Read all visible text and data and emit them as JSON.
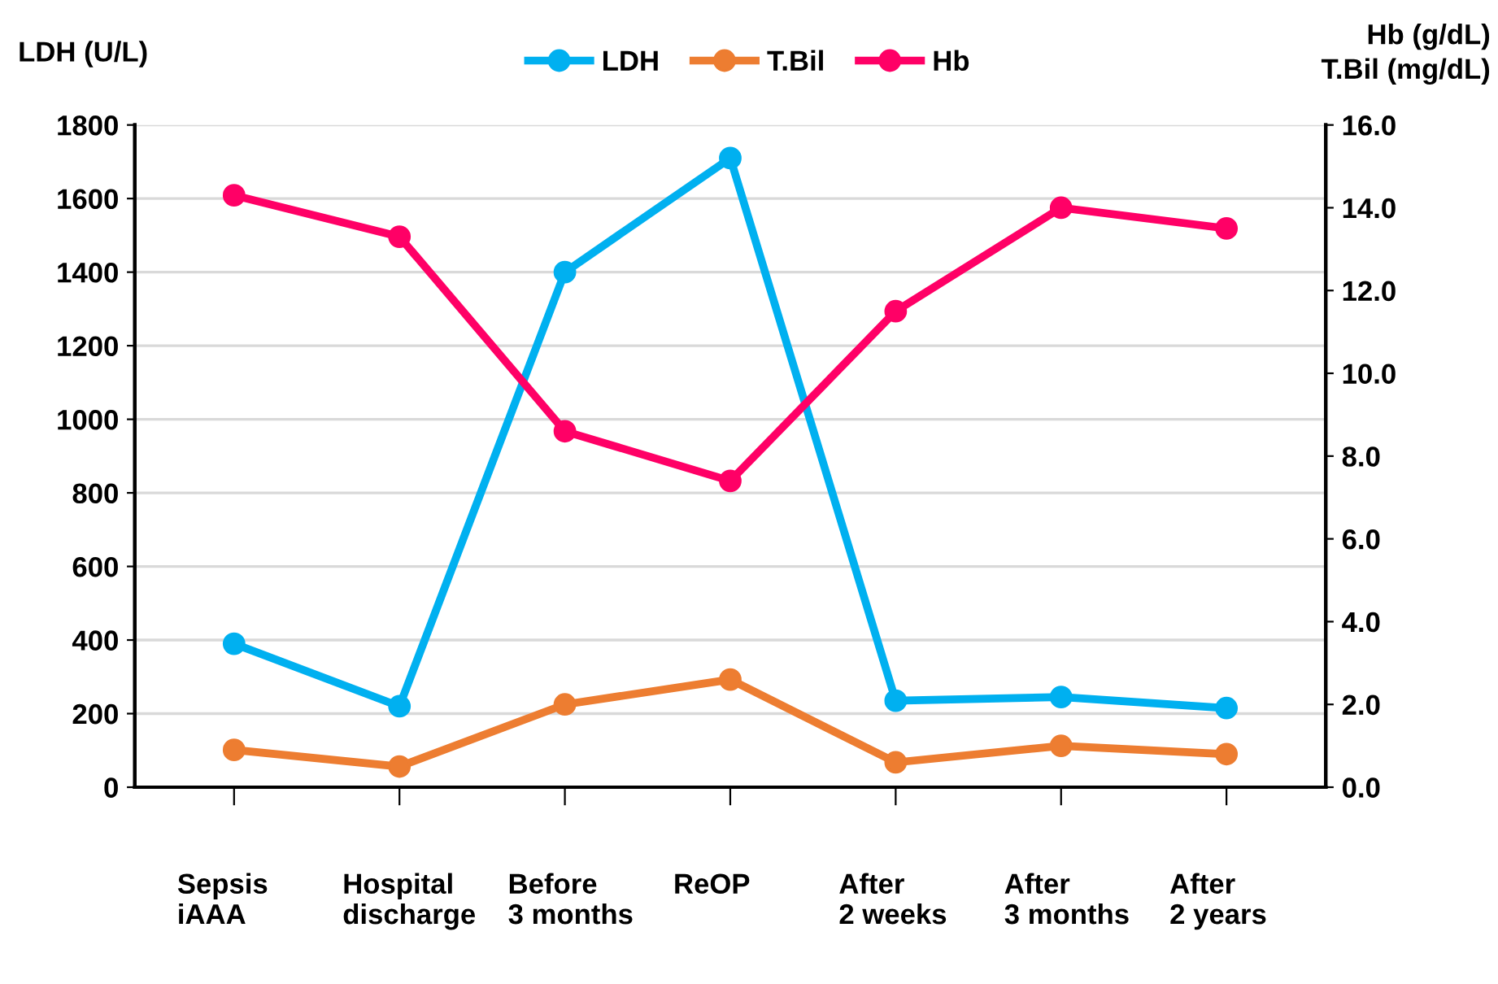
{
  "chart_data": {
    "type": "line",
    "categories": [
      "Sepsis\niAAA",
      "Hospital\ndischarge",
      "Before\n3 months",
      "ReOP",
      "After\n2 weeks",
      "After\n3 months",
      "After\n2 years"
    ],
    "ylabel": "LDH (U/L)",
    "y2label": "Hb (g/dL)\nT.Bil (mg/dL)",
    "series": [
      {
        "name": "LDH",
        "color": "#00b0f0",
        "values": [
          390,
          220,
          1400,
          1710,
          235,
          245,
          215
        ]
      },
      {
        "name": "T.Bil",
        "color": "#ed7d31",
        "axis": "y2",
        "values": [
          0.9,
          0.5,
          2.0,
          2.6,
          0.6,
          1.0,
          0.8
        ]
      },
      {
        "name": "Hb",
        "color": "#ff0066",
        "axis": "y2",
        "values": [
          14.3,
          13.3,
          8.6,
          7.4,
          11.5,
          14.0,
          13.5
        ]
      }
    ],
    "ylim": [
      0,
      1800
    ],
    "yticks": [
      0,
      200,
      400,
      600,
      800,
      1000,
      1200,
      1400,
      1600,
      1800
    ],
    "y2lim": [
      0,
      16
    ],
    "y2ticks": [
      {
        "value": 0,
        "label": "0.0"
      },
      {
        "value": 2,
        "label": "2.0"
      },
      {
        "value": 4,
        "label": "4.0"
      },
      {
        "value": 6,
        "label": "6.0"
      },
      {
        "value": 8,
        "label": "8.0"
      },
      {
        "value": 10,
        "label": "10.0"
      },
      {
        "value": 12,
        "label": "12.0"
      },
      {
        "value": 14,
        "label": "14.0"
      },
      {
        "value": 16,
        "label": "16.0"
      }
    ],
    "grid": "y",
    "legend": "top",
    "marker": "circle",
    "line_style": "solid"
  }
}
